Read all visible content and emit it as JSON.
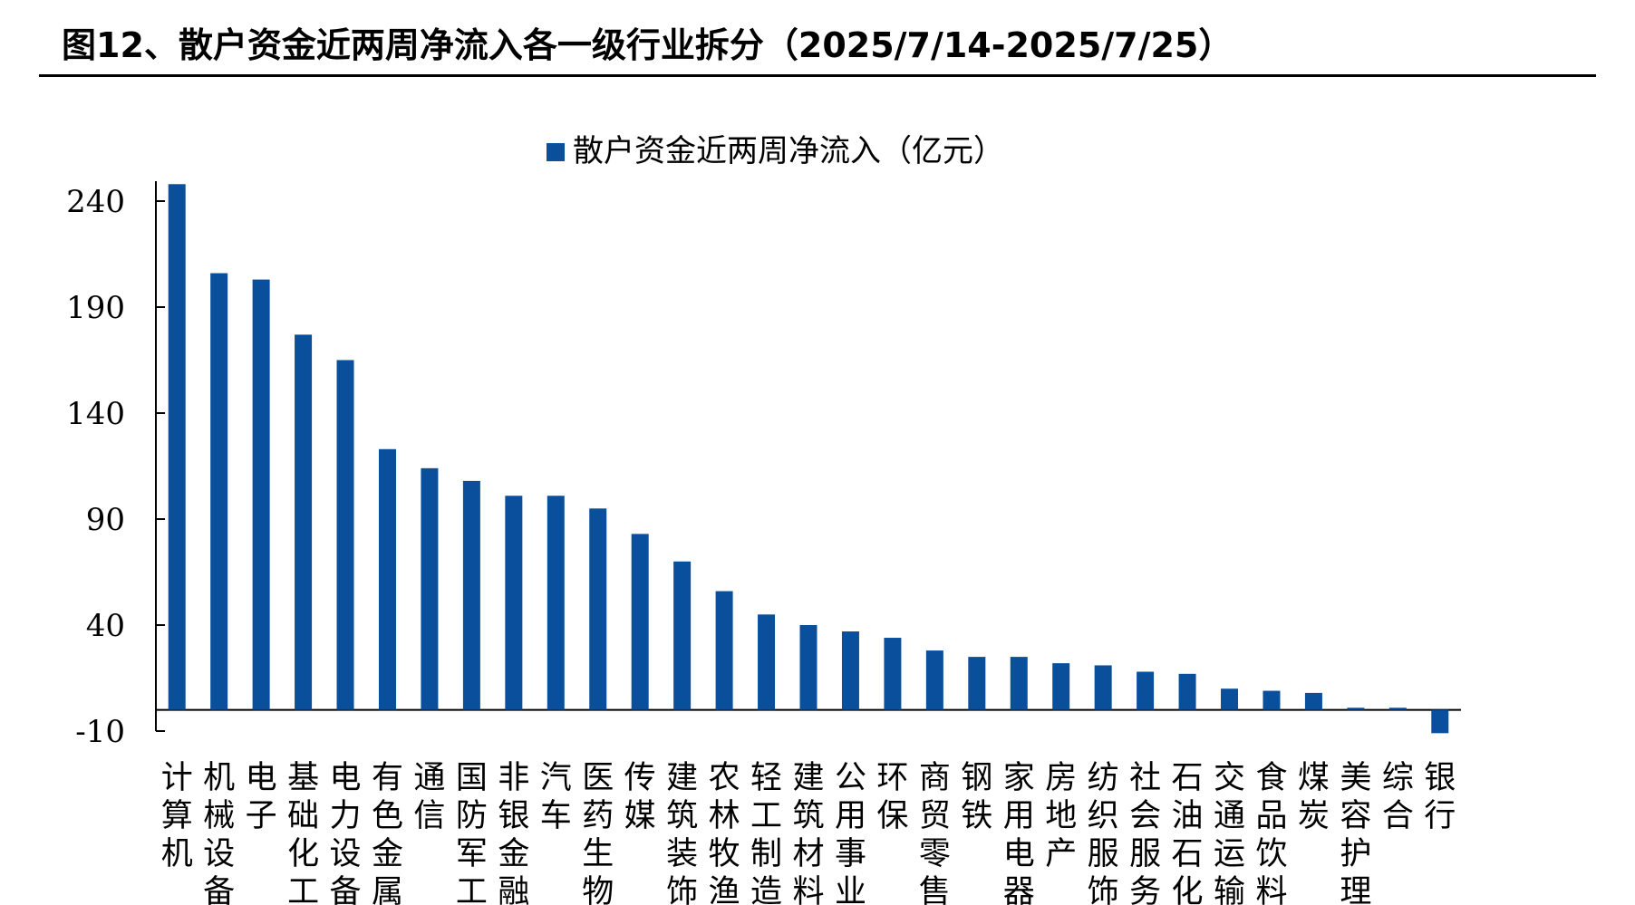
{
  "header": {
    "figure_title": "图12、散户资金近两周净流入各一级行业拆分（2025/7/14-2025/7/25）"
  },
  "chart_data": {
    "type": "bar",
    "series": [
      {
        "name": "散户资金近两周净流入（亿元）",
        "color": "#0a4f9c",
        "values": [
          248,
          206,
          203,
          177,
          165,
          123,
          114,
          108,
          101,
          101,
          95,
          83,
          70,
          56,
          45,
          40,
          37,
          34,
          28,
          25,
          25,
          22,
          21,
          18,
          17,
          10,
          9,
          8,
          1,
          1,
          -11
        ]
      }
    ],
    "categories": [
      "计算机",
      "机械设备",
      "电子",
      "基础化工",
      "电力设备",
      "有色金属",
      "通信",
      "国防军工",
      "非银金融",
      "汽车",
      "医药生物",
      "传媒",
      "建筑装饰",
      "农林牧渔",
      "轻工制造",
      "建筑材料",
      "公用事业",
      "环保",
      "商贸零售",
      "钢铁",
      "家用电器",
      "房地产",
      "纺织服饰",
      "社会服务",
      "石油石化",
      "交通运输",
      "食品饮料",
      "煤炭",
      "美容护理",
      "综合",
      "银行"
    ],
    "yticks": [
      "240",
      "190",
      "140",
      "90",
      "40",
      "-10"
    ],
    "ylim": [
      -10,
      250
    ],
    "legend_position": "top-center",
    "grid": false
  }
}
